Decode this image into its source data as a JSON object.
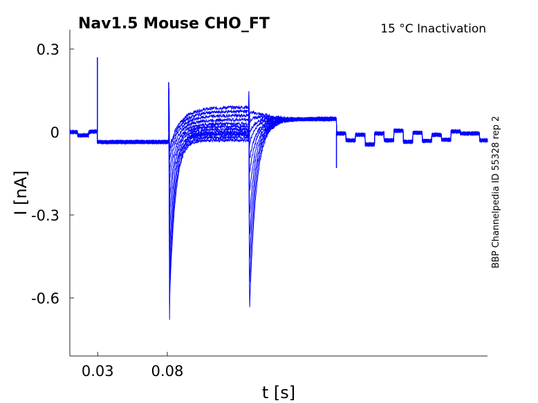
{
  "chart_data": {
    "type": "line",
    "title": "Nav1.5  Mouse  CHO_FT",
    "subtitle": "15 °C  Inactivation",
    "side_label": "BBP Channelpedia ID 55328 rep 2",
    "xlabel": "t [s]",
    "ylabel": "I [nA]",
    "xlim": [
      0.01,
      0.31
    ],
    "ylim": [
      -0.81,
      0.37
    ],
    "xticks": [
      0.03,
      0.08
    ],
    "xtick_labels": [
      "0.03",
      "0.08"
    ],
    "yticks": [
      0.3,
      0,
      -0.3,
      -0.6
    ],
    "ytick_labels": [
      "0.3",
      "0",
      "-0.3",
      "-0.6"
    ],
    "grid": false,
    "color": "#0000ff",
    "sweep_count": 12,
    "first_peak": {
      "t": 0.081,
      "values_nA": [
        -0.05,
        -0.07,
        -0.1,
        -0.14,
        -0.19,
        -0.25,
        -0.31,
        -0.39,
        -0.47,
        -0.55,
        -0.62,
        -0.68
      ]
    },
    "second_peak": {
      "t": 0.1385,
      "values_nA": [
        -0.02,
        -0.04,
        -0.07,
        -0.1,
        -0.15,
        -0.2,
        -0.27,
        -0.35,
        -0.44,
        -0.53,
        -0.62,
        -0.71
      ]
    },
    "step_levels_nA": [
      0.09,
      0.075,
      0.06,
      0.045,
      0.03,
      0.02,
      0.01,
      0.0,
      -0.005,
      -0.01,
      -0.02,
      -0.03
    ],
    "pulse_spikes_nA": [
      0.27,
      0.18,
      0.09,
      -0.13
    ]
  }
}
